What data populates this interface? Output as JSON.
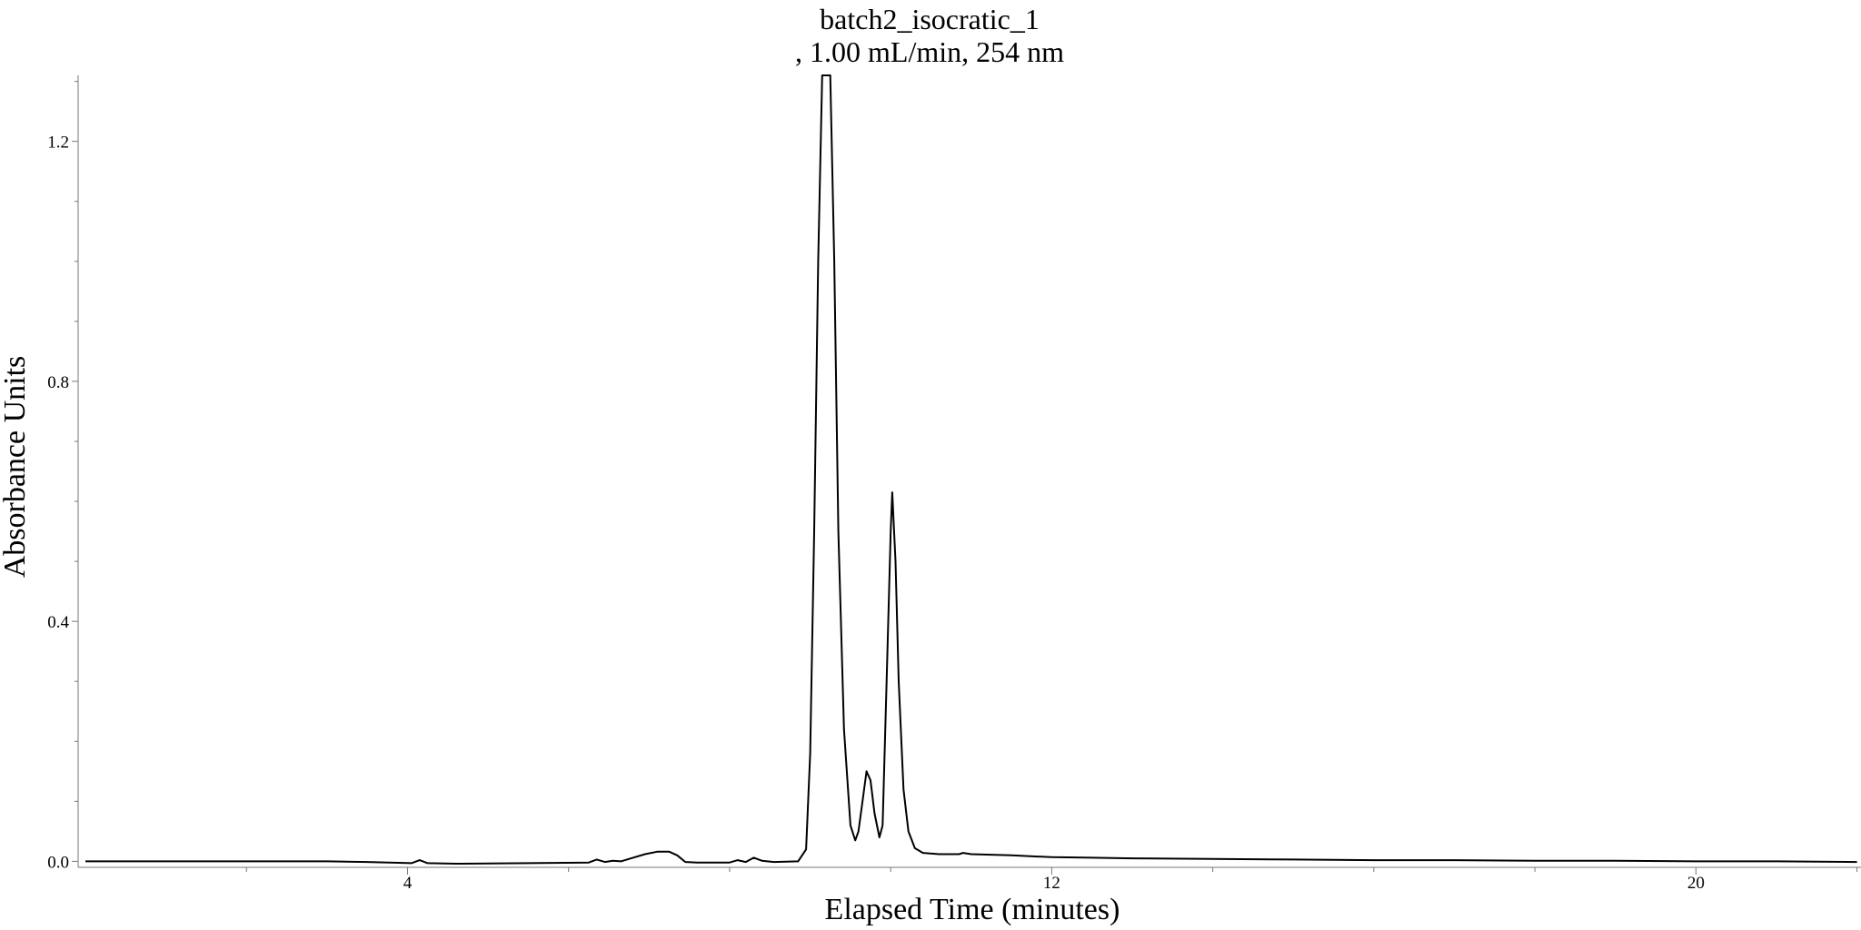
{
  "chart_data": {
    "type": "line",
    "title": "batch2_isocratic_1",
    "subtitle": ", 1.00 mL/min, 254 nm",
    "xlabel": "Elapsed Time (minutes)",
    "ylabel": "Absorbance Units",
    "xlim": [
      0.0,
      22.05
    ],
    "ylim": [
      -0.01,
      1.31
    ],
    "x_ticks": [
      4,
      12,
      20
    ],
    "y_ticks": [
      0.0,
      0.4,
      0.8,
      1.2
    ],
    "x_tick_labels": [
      "4",
      "12",
      "20"
    ],
    "y_tick_labels": [
      "0.0",
      "0.4",
      "0.8",
      "1.2"
    ],
    "grid": false,
    "legend": "none",
    "line_color": "#000000",
    "series": [
      {
        "values": [
          [
            0.0,
            0.0
          ],
          [
            1.0,
            0.0
          ],
          [
            2.0,
            0.0
          ],
          [
            3.0,
            0.0
          ],
          [
            3.5,
            -0.001
          ],
          [
            4.05,
            -0.003
          ],
          [
            4.15,
            0.002
          ],
          [
            4.25,
            -0.003
          ],
          [
            4.6,
            -0.004
          ],
          [
            5.5,
            -0.003
          ],
          [
            6.25,
            -0.002
          ],
          [
            6.35,
            0.003
          ],
          [
            6.45,
            -0.001
          ],
          [
            6.55,
            0.001
          ],
          [
            6.65,
            0.0
          ],
          [
            6.8,
            0.006
          ],
          [
            6.95,
            0.012
          ],
          [
            7.1,
            0.016
          ],
          [
            7.25,
            0.016
          ],
          [
            7.35,
            0.01
          ],
          [
            7.45,
            -0.001
          ],
          [
            7.6,
            -0.002
          ],
          [
            8.0,
            -0.002
          ],
          [
            8.1,
            0.002
          ],
          [
            8.2,
            -0.001
          ],
          [
            8.3,
            0.006
          ],
          [
            8.4,
            0.001
          ],
          [
            8.55,
            -0.001
          ],
          [
            8.85,
            0.0
          ],
          [
            8.95,
            0.02
          ],
          [
            9.0,
            0.18
          ],
          [
            9.05,
            0.55
          ],
          [
            9.1,
            1.0
          ],
          [
            9.15,
            1.31
          ],
          [
            9.25,
            1.31
          ],
          [
            9.3,
            1.0
          ],
          [
            9.35,
            0.55
          ],
          [
            9.42,
            0.22
          ],
          [
            9.5,
            0.06
          ],
          [
            9.56,
            0.035
          ],
          [
            9.6,
            0.05
          ],
          [
            9.65,
            0.1
          ],
          [
            9.7,
            0.15
          ],
          [
            9.75,
            0.135
          ],
          [
            9.8,
            0.08
          ],
          [
            9.86,
            0.04
          ],
          [
            9.9,
            0.06
          ],
          [
            9.95,
            0.3
          ],
          [
            10.0,
            0.55
          ],
          [
            10.02,
            0.615
          ],
          [
            10.06,
            0.5
          ],
          [
            10.1,
            0.3
          ],
          [
            10.16,
            0.12
          ],
          [
            10.22,
            0.05
          ],
          [
            10.3,
            0.022
          ],
          [
            10.4,
            0.014
          ],
          [
            10.6,
            0.012
          ],
          [
            10.85,
            0.012
          ],
          [
            10.9,
            0.014
          ],
          [
            11.0,
            0.012
          ],
          [
            11.5,
            0.01
          ],
          [
            12.0,
            0.007
          ],
          [
            12.5,
            0.006
          ],
          [
            13.0,
            0.005
          ],
          [
            14.0,
            0.004
          ],
          [
            15.0,
            0.003
          ],
          [
            16.0,
            0.002
          ],
          [
            17.0,
            0.002
          ],
          [
            18.0,
            0.001
          ],
          [
            19.0,
            0.001
          ],
          [
            20.0,
            0.0
          ],
          [
            21.0,
            0.0
          ],
          [
            22.0,
            -0.001
          ]
        ]
      }
    ]
  }
}
